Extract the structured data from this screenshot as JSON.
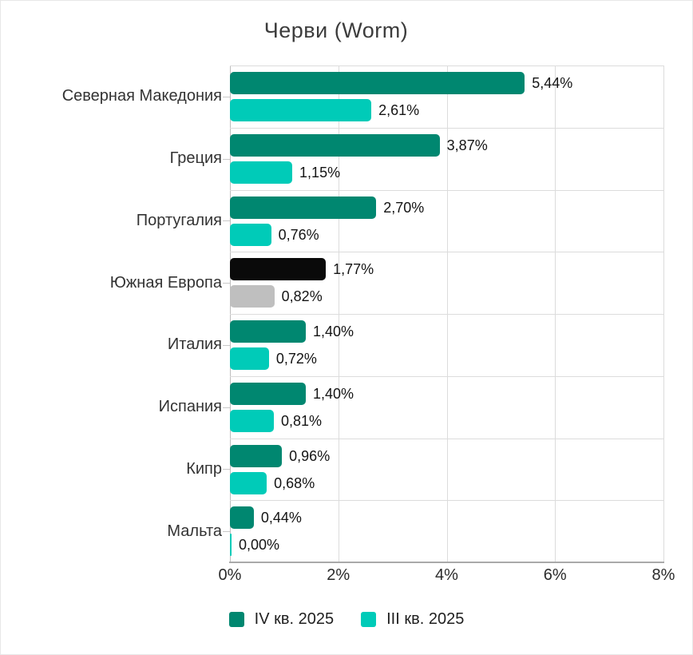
{
  "chart_data": {
    "type": "bar",
    "orientation": "horizontal",
    "title": "Черви (Worm)",
    "categories": [
      "Северная Македония",
      "Греция",
      "Португалия",
      "Южная Европа",
      "Италия",
      "Испания",
      "Кипр",
      "Мальта"
    ],
    "series": [
      {
        "name": "IV кв. 2025",
        "color": "#008770",
        "values": [
          5.44,
          3.87,
          2.7,
          1.77,
          1.4,
          1.4,
          0.96,
          0.44
        ],
        "value_labels": [
          "5,44%",
          "3,87%",
          "2,70%",
          "1,77%",
          "1,40%",
          "1,40%",
          "0,96%",
          "0,44%"
        ]
      },
      {
        "name": "III кв. 2025",
        "color": "#00cbb8",
        "values": [
          2.61,
          1.15,
          0.76,
          0.82,
          0.72,
          0.81,
          0.68,
          0.0
        ],
        "value_labels": [
          "2,61%",
          "1,15%",
          "0,76%",
          "0,82%",
          "0,72%",
          "0,81%",
          "0,68%",
          "0,00%"
        ]
      }
    ],
    "highlight": {
      "category": "Южная Европа",
      "colors": [
        "#0a0a0a",
        "#bfbfbf"
      ]
    },
    "x_ticks": [
      "0%",
      "2%",
      "4%",
      "6%",
      "8%"
    ],
    "xlim": [
      0,
      8
    ],
    "grid": true,
    "legend_position": "bottom",
    "decimal_separator": ","
  }
}
